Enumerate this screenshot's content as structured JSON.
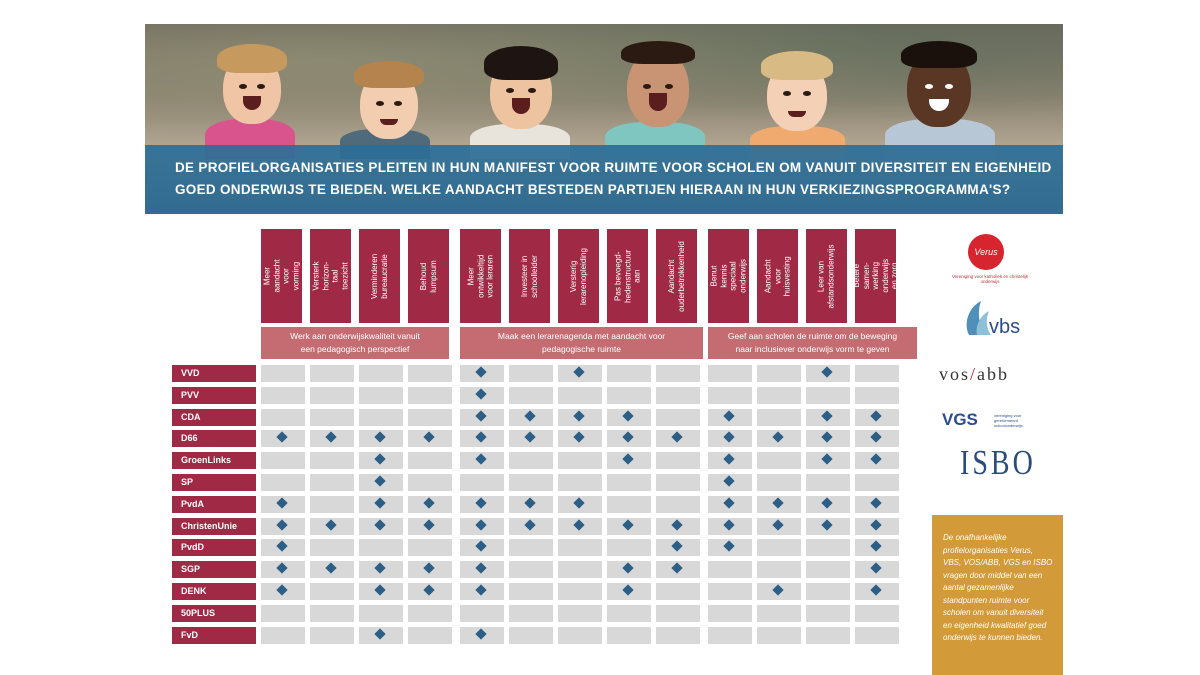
{
  "banner": {
    "line1": "DE PROFIELORGANISATIES PLEITEN IN HUN MANIFEST VOOR RUIMTE VOOR SCHOLEN OM VANUIT DIVERSITEIT EN EIGENHEID",
    "line2": "GOED ONDERWIJS TE BIEDEN. WELKE AANDACHT BESTEDEN PARTIJEN HIERAAN IN HUN VERKIEZINGSPROGRAMMA'S?"
  },
  "columns": [
    "Meer aandacht voor vorming",
    "Versterk horizon-taal toezicht",
    "Verminderen bureaucratie",
    "Behoud lumpsum",
    "Meer ontwikkeltijd voor leraren",
    "Investeer in schoolleider",
    "Versterig lerarenopleiding",
    "Pas bevoegd-hedenstructuur aan",
    "Aandacht ouderbetrokkenheid",
    "Benut kennis speciaal onderwijs",
    "Aandacht voor huisvesting",
    "Leer van afstandsonderwijs",
    "Betere samen-werking onderwijs en zorg"
  ],
  "groups": [
    {
      "label": "Werk aan onderwijskwaliteit vanuit een pedagogisch perspectief",
      "line1": "Werk aan onderwijskwaliteit vanuit",
      "line2": "een pedagogisch perspectief"
    },
    {
      "label": "Maak een lerarenagenda met aandacht voor pedagogische ruimte",
      "line1": "Maak een lerarenagenda met aandacht voor",
      "line2": "pedagogische ruimte"
    },
    {
      "label": "Geef aan scholen de ruimte om de beweging naar inclusiever onderwijs vorm te geven",
      "line1": "Geef aan scholen de ruimte om de beweging",
      "line2": "naar inclusiever onderwijs vorm te geven"
    }
  ],
  "rows": [
    {
      "party": "VVD",
      "marks": [
        0,
        0,
        0,
        0,
        1,
        0,
        1,
        0,
        0,
        0,
        0,
        1,
        0
      ]
    },
    {
      "party": "PVV",
      "marks": [
        0,
        0,
        0,
        0,
        1,
        0,
        0,
        0,
        0,
        0,
        0,
        0,
        0
      ]
    },
    {
      "party": "CDA",
      "marks": [
        0,
        0,
        0,
        0,
        1,
        1,
        1,
        1,
        0,
        1,
        0,
        1,
        1
      ]
    },
    {
      "party": "D66",
      "marks": [
        1,
        1,
        1,
        1,
        1,
        1,
        1,
        1,
        1,
        1,
        1,
        1,
        1
      ]
    },
    {
      "party": "GroenLinks",
      "marks": [
        0,
        0,
        1,
        0,
        1,
        0,
        0,
        1,
        0,
        1,
        0,
        1,
        1
      ]
    },
    {
      "party": "SP",
      "marks": [
        0,
        0,
        1,
        0,
        0,
        0,
        0,
        0,
        0,
        1,
        0,
        0,
        0
      ]
    },
    {
      "party": "PvdA",
      "marks": [
        1,
        0,
        1,
        1,
        1,
        1,
        1,
        0,
        0,
        1,
        1,
        1,
        1
      ]
    },
    {
      "party": "ChristenUnie",
      "marks": [
        1,
        1,
        1,
        1,
        1,
        1,
        1,
        1,
        1,
        1,
        1,
        1,
        1
      ]
    },
    {
      "party": "PvdD",
      "marks": [
        1,
        0,
        0,
        0,
        1,
        0,
        0,
        0,
        1,
        1,
        0,
        0,
        1
      ]
    },
    {
      "party": "SGP",
      "marks": [
        1,
        1,
        1,
        1,
        1,
        0,
        0,
        1,
        1,
        0,
        0,
        0,
        1
      ]
    },
    {
      "party": "DENK",
      "marks": [
        1,
        0,
        1,
        1,
        1,
        0,
        0,
        1,
        0,
        0,
        1,
        0,
        1
      ]
    },
    {
      "party": "50PLUS",
      "marks": [
        0,
        0,
        0,
        0,
        0,
        0,
        0,
        0,
        0,
        0,
        0,
        0,
        0
      ]
    },
    {
      "party": "FvD",
      "marks": [
        0,
        0,
        1,
        0,
        1,
        0,
        0,
        0,
        0,
        0,
        0,
        0,
        0
      ]
    }
  ],
  "logos": {
    "verus": "Verus",
    "verus_sub": "Vereniging voor katholiek en christelijk onderwijs",
    "vbs": "vbs",
    "vosabb_left": "vos",
    "vosabb_sep": "/",
    "vosabb_right": "abb",
    "vgs": "VGS",
    "vgs_sub": "vereniging voor gereformeerd schoolonderwijs",
    "isbo": "ISBO"
  },
  "note": "De onafhankelijke profielorganisaties Verus, VBS, VOS/ABB, VGS en ISBO vragen door middel van een aantal gezamenlijke standpunten ruimte voor scholen om vanuit diversiteit en eigenheid kwalitatief goed onderwijs te kunnen bieden.",
  "colors": {
    "header": "#a02a45",
    "group": "#c46c72",
    "banner": "#2e6e96",
    "cell": "#d8d8d8",
    "marker": "#2d5f86",
    "note": "#d39a39"
  }
}
